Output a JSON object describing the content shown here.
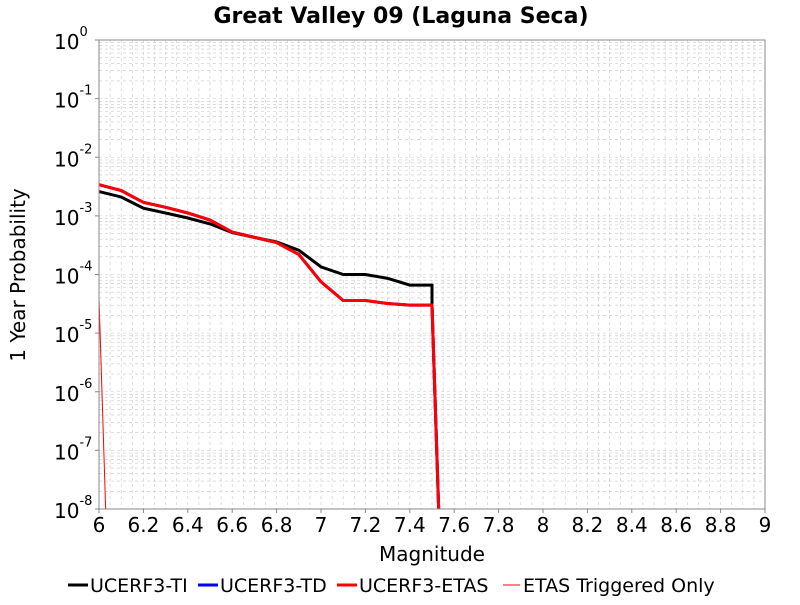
{
  "colors": {
    "ti": "#000000",
    "td": "#0000ff",
    "etas": "#ff0000",
    "triggered": "#ff0000",
    "grid": "#c8c8c8",
    "plot_bg": "#ffffff"
  },
  "chart_data": {
    "type": "line",
    "title": "Great Valley 09 (Laguna Seca)",
    "xlabel": "Magnitude",
    "ylabel": "1 Year Probability",
    "xlim": [
      6,
      9
    ],
    "ylim_log10": [
      -8,
      0
    ],
    "y_scale": "log",
    "grid": true,
    "legend_position": "bottom",
    "x_ticks": [
      "6",
      "6.2",
      "6.4",
      "6.6",
      "6.8",
      "7",
      "7.2",
      "7.4",
      "7.6",
      "7.8",
      "8",
      "8.2",
      "8.4",
      "8.6",
      "8.8",
      "9"
    ],
    "y_ticks": [
      {
        "base": "10",
        "exp": "0"
      },
      {
        "base": "10",
        "exp": "-1"
      },
      {
        "base": "10",
        "exp": "-2"
      },
      {
        "base": "10",
        "exp": "-3"
      },
      {
        "base": "10",
        "exp": "-4"
      },
      {
        "base": "10",
        "exp": "-5"
      },
      {
        "base": "10",
        "exp": "-6"
      },
      {
        "base": "10",
        "exp": "-7"
      },
      {
        "base": "10",
        "exp": "-8"
      }
    ],
    "series": [
      {
        "name": "UCERF3-TI",
        "color": "#000000",
        "width": 3,
        "points": [
          [
            6.0,
            0.0026
          ],
          [
            6.1,
            0.0021
          ],
          [
            6.2,
            0.00135
          ],
          [
            6.3,
            0.00112
          ],
          [
            6.4,
            0.00092
          ],
          [
            6.5,
            0.00073
          ],
          [
            6.6,
            0.00052
          ],
          [
            6.7,
            0.00043
          ],
          [
            6.8,
            0.00036
          ],
          [
            6.9,
            0.00026
          ],
          [
            7.0,
            0.000135
          ],
          [
            7.1,
            0.0001
          ],
          [
            7.2,
            0.0001
          ],
          [
            7.3,
            8.6e-05
          ],
          [
            7.4,
            6.6e-05
          ],
          [
            7.5,
            6.6e-05
          ],
          [
            7.5,
            3e-05
          ],
          [
            7.53,
            1e-08
          ]
        ]
      },
      {
        "name": "UCERF3-TD",
        "color": "#0000ff",
        "width": 3,
        "points": [
          [
            6.0,
            0.0034
          ],
          [
            6.1,
            0.0027
          ],
          [
            6.2,
            0.0017
          ],
          [
            6.3,
            0.0014
          ],
          [
            6.4,
            0.00112
          ],
          [
            6.5,
            0.00085
          ],
          [
            6.6,
            0.00053
          ],
          [
            6.7,
            0.00043
          ],
          [
            6.8,
            0.00035
          ],
          [
            6.9,
            0.00022
          ],
          [
            7.0,
            7.5e-05
          ],
          [
            7.1,
            3.6e-05
          ],
          [
            7.2,
            3.6e-05
          ],
          [
            7.3,
            3.2e-05
          ],
          [
            7.4,
            3e-05
          ],
          [
            7.5,
            3e-05
          ],
          [
            7.53,
            1e-08
          ]
        ]
      },
      {
        "name": "UCERF3-ETAS",
        "color": "#ff0000",
        "width": 3,
        "points": [
          [
            6.0,
            0.0034
          ],
          [
            6.1,
            0.0027
          ],
          [
            6.2,
            0.0017
          ],
          [
            6.3,
            0.0014
          ],
          [
            6.4,
            0.00112
          ],
          [
            6.5,
            0.00085
          ],
          [
            6.6,
            0.00053
          ],
          [
            6.7,
            0.00043
          ],
          [
            6.8,
            0.00035
          ],
          [
            6.9,
            0.00022
          ],
          [
            7.0,
            7.5e-05
          ],
          [
            7.1,
            3.6e-05
          ],
          [
            7.2,
            3.6e-05
          ],
          [
            7.3,
            3.2e-05
          ],
          [
            7.4,
            3e-05
          ],
          [
            7.5,
            3e-05
          ],
          [
            7.53,
            1e-08
          ]
        ]
      },
      {
        "name": "ETAS Triggered Only",
        "color": "#ff0000",
        "width": 1,
        "points": [
          [
            6.0,
            4e-05
          ],
          [
            6.03,
            1e-08
          ]
        ]
      }
    ]
  }
}
